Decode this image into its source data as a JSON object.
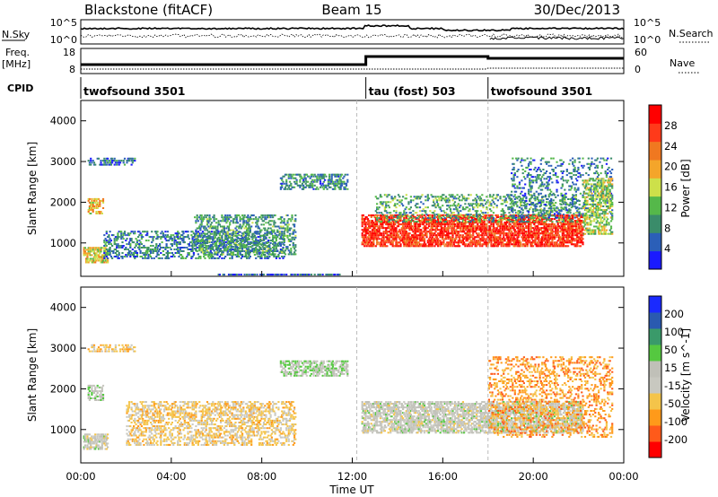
{
  "header": {
    "radar": "Blackstone (fitACF)",
    "beam": "Beam 15",
    "date": "30/Dec/2013"
  },
  "noise_panel": {
    "left_label": "N.Sky",
    "left_ticks": [
      "10^5",
      "10^0"
    ],
    "right_ticks": [
      "10^5",
      "10^0"
    ],
    "right_label": "N.Search"
  },
  "freq_panel": {
    "left_label_1": "Freq.",
    "left_label_2": "[MHz]",
    "left_ticks": [
      "18",
      "8"
    ],
    "right_ticks": [
      "60",
      "0"
    ],
    "right_label": "Nave"
  },
  "cpid": {
    "label": "CPID",
    "segments": [
      {
        "name": "twofsound 3501",
        "start_hour": 0
      },
      {
        "name": "tau (fost) 503",
        "start_hour": 12.6
      },
      {
        "name": "twofsound 3501",
        "start_hour": 18
      }
    ]
  },
  "colors": {
    "power": [
      "#1a1aff",
      "#2b5fb8",
      "#3a8c6a",
      "#55b84a",
      "#cde04a",
      "#f4a52a",
      "#f07820",
      "#ff3a1a",
      "#ff0000"
    ],
    "velocity": [
      "#ff0000",
      "#ff5a1a",
      "#ff9a1a",
      "#f4c44a",
      "#c8c8c0",
      "#c0c0b8",
      "#55c840",
      "#3a9a6a",
      "#2a5ab0",
      "#1a2aff"
    ]
  },
  "power_colorbar": {
    "label": "Power [dB]",
    "ticks": [
      "4",
      "8",
      "12",
      "16",
      "20",
      "24",
      "28"
    ]
  },
  "velocity_colorbar": {
    "label": "Velocity [m s^-1]",
    "ticks": [
      "-200",
      "-100",
      "-50",
      "-15",
      "15",
      "50",
      "100",
      "200"
    ]
  },
  "x_axis": {
    "label": "Time UT",
    "ticks": [
      "00:00",
      "04:00",
      "08:00",
      "12:00",
      "16:00",
      "20:00",
      "00:00"
    ]
  },
  "chart_data": [
    {
      "type": "heatmap",
      "panel": "power",
      "ylabel": "Slant Range [km]",
      "xlabel": "",
      "ylim": [
        180,
        4500
      ],
      "xlim_hours": [
        0,
        24
      ],
      "yticks": [
        "1000",
        "2000",
        "3000",
        "4000"
      ],
      "clim_db": [
        0,
        30
      ],
      "regions": [
        {
          "t0": 0.1,
          "t1": 1.2,
          "r0": 500,
          "r1": 900,
          "value": 16,
          "density": 0.6
        },
        {
          "t0": 0.3,
          "t1": 1.0,
          "r0": 1700,
          "r1": 2100,
          "value": 18,
          "density": 0.5
        },
        {
          "t0": 0.3,
          "t1": 2.4,
          "r0": 2900,
          "r1": 3100,
          "value": 6,
          "density": 0.4
        },
        {
          "t0": 1.0,
          "t1": 9.0,
          "r0": 600,
          "r1": 1300,
          "value": 7,
          "density": 0.35
        },
        {
          "t0": 5.0,
          "t1": 9.5,
          "r0": 700,
          "r1": 1700,
          "value": 9,
          "density": 0.35
        },
        {
          "t0": 8.8,
          "t1": 11.8,
          "r0": 2300,
          "r1": 2700,
          "value": 8,
          "density": 0.45
        },
        {
          "t0": 6.0,
          "t1": 11.5,
          "r0": 200,
          "r1": 250,
          "value": 5,
          "density": 0.6
        },
        {
          "t0": 12.4,
          "t1": 22.2,
          "r0": 900,
          "r1": 1700,
          "value": 26,
          "density": 0.65
        },
        {
          "t0": 13.0,
          "t1": 22.0,
          "r0": 1500,
          "r1": 2200,
          "value": 10,
          "density": 0.25
        },
        {
          "t0": 19.0,
          "t1": 23.5,
          "r0": 1600,
          "r1": 3100,
          "value": 7,
          "density": 0.2
        },
        {
          "t0": 22.2,
          "t1": 23.5,
          "r0": 1200,
          "r1": 2600,
          "value": 14,
          "density": 0.45
        }
      ]
    },
    {
      "type": "heatmap",
      "panel": "velocity",
      "ylabel": "Slant Range [km]",
      "xlabel": "Time UT",
      "ylim": [
        180,
        4500
      ],
      "xlim_hours": [
        0,
        24
      ],
      "yticks": [
        "1000",
        "2000",
        "3000",
        "4000"
      ],
      "clim_ms": [
        -250,
        250
      ],
      "regions": [
        {
          "t0": 0.1,
          "t1": 1.2,
          "r0": 500,
          "r1": 900,
          "value": 0,
          "density": 0.6
        },
        {
          "t0": 0.3,
          "t1": 1.0,
          "r0": 1700,
          "r1": 2100,
          "value": 10,
          "density": 0.5
        },
        {
          "t0": 0.3,
          "t1": 2.4,
          "r0": 2900,
          "r1": 3100,
          "value": -80,
          "density": 0.4
        },
        {
          "t0": 2.0,
          "t1": 9.5,
          "r0": 600,
          "r1": 1700,
          "value": -60,
          "density": 0.4
        },
        {
          "t0": 8.8,
          "t1": 11.8,
          "r0": 2300,
          "r1": 2700,
          "value": 40,
          "density": 0.5
        },
        {
          "t0": 12.4,
          "t1": 22.2,
          "r0": 900,
          "r1": 1700,
          "value": 0,
          "density": 0.6
        },
        {
          "t0": 18.0,
          "t1": 23.5,
          "r0": 800,
          "r1": 2800,
          "value": -120,
          "density": 0.25
        }
      ]
    }
  ]
}
